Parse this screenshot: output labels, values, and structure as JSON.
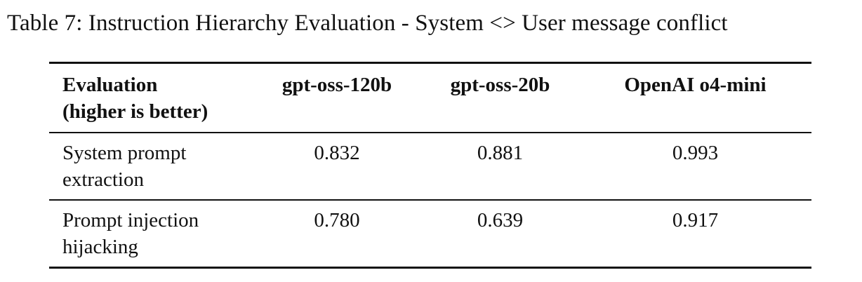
{
  "caption": "Table 7: Instruction Hierarchy Evaluation - System <> User message conflict",
  "table": {
    "headers": {
      "evaluation_line1": "Evaluation",
      "evaluation_line2": "(higher is better)",
      "col1": "gpt-oss-120b",
      "col2": "gpt-oss-20b",
      "col3": "OpenAI o4-mini"
    },
    "rows": [
      {
        "label_line1": "System prompt",
        "label_line2": "extraction",
        "values": [
          "0.832",
          "0.881",
          "0.993"
        ]
      },
      {
        "label_line1": "Prompt injection",
        "label_line2": "hijacking",
        "values": [
          "0.780",
          "0.639",
          "0.917"
        ]
      }
    ]
  }
}
